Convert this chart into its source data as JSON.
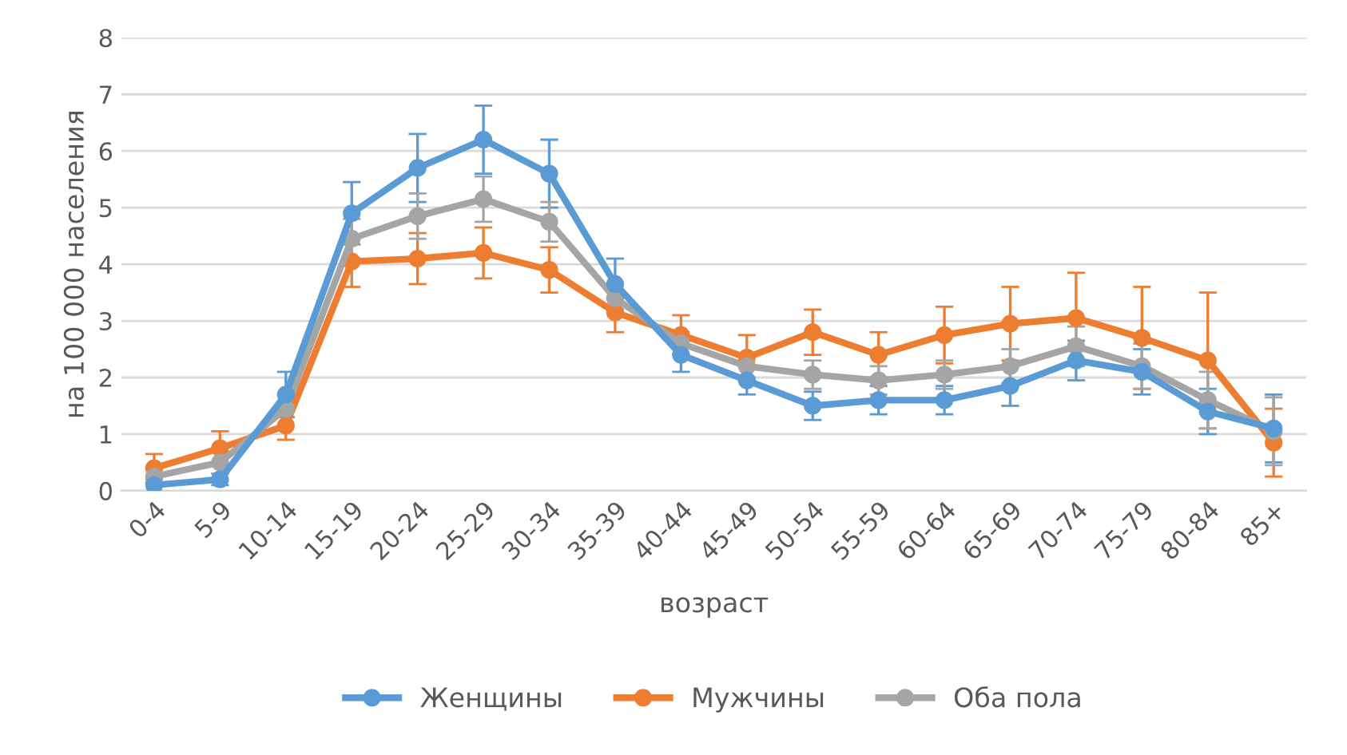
{
  "chart_data": {
    "type": "line",
    "xlabel": "возраст",
    "ylabel": "на 100 000 населения",
    "categories": [
      "0-4",
      "5-9",
      "10-14",
      "15-19",
      "20-24",
      "25-29",
      "30-34",
      "35-39",
      "40-44",
      "45-49",
      "50-54",
      "55-59",
      "60-64",
      "65-69",
      "70-74",
      "75-79",
      "80-84",
      "85+"
    ],
    "series": [
      {
        "name": "Женщины",
        "color": "#5b9bd5",
        "values": [
          0.1,
          0.2,
          1.7,
          4.9,
          5.7,
          6.2,
          5.6,
          3.65,
          2.4,
          1.95,
          1.5,
          1.6,
          1.6,
          1.85,
          2.3,
          2.1,
          1.4,
          1.1
        ],
        "errors": [
          0.1,
          0.1,
          0.4,
          0.55,
          0.6,
          0.6,
          0.6,
          0.45,
          0.3,
          0.25,
          0.25,
          0.25,
          0.25,
          0.35,
          0.35,
          0.4,
          0.4,
          0.6
        ]
      },
      {
        "name": "Мужчины",
        "color": "#ed7d31",
        "values": [
          0.4,
          0.75,
          1.15,
          4.05,
          4.1,
          4.2,
          3.9,
          3.15,
          2.75,
          2.35,
          2.8,
          2.4,
          2.75,
          2.95,
          3.05,
          2.7,
          2.3,
          0.85
        ],
        "errors": [
          0.25,
          0.3,
          0.25,
          0.45,
          0.45,
          0.45,
          0.4,
          0.35,
          0.35,
          0.4,
          0.4,
          0.4,
          0.5,
          0.65,
          0.8,
          0.9,
          1.2,
          0.6
        ]
      },
      {
        "name": "Оба пола",
        "color": "#a5a5a5",
        "values": [
          0.25,
          0.5,
          1.45,
          4.45,
          4.85,
          5.15,
          4.75,
          3.4,
          2.6,
          2.2,
          2.05,
          1.95,
          2.05,
          2.2,
          2.55,
          2.2,
          1.6,
          1.05
        ],
        "errors": [
          0.15,
          0.2,
          null,
          0.35,
          0.4,
          0.4,
          0.35,
          null,
          0.2,
          0.2,
          0.25,
          0.25,
          0.25,
          0.3,
          0.35,
          0.4,
          0.5,
          0.6
        ]
      }
    ],
    "ylim": [
      0,
      8
    ],
    "yticks": [
      0,
      1,
      2,
      3,
      4,
      5,
      6,
      7,
      8
    ],
    "grid": "y",
    "legend": "bottom",
    "marker": "circle",
    "line_style": "solid"
  }
}
